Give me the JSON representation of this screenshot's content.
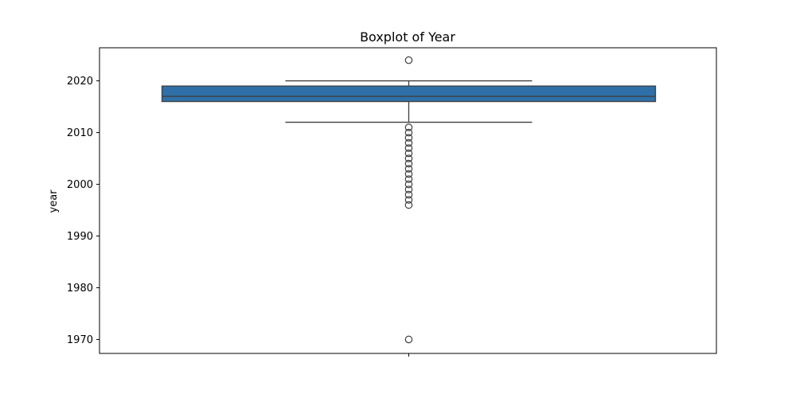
{
  "chart_data": {
    "type": "boxplot",
    "title": "Boxplot of Year",
    "xlabel": "",
    "ylabel": "year",
    "ylim": [
      1967.3,
      2026.4
    ],
    "yticks": [
      1970,
      1980,
      1990,
      2000,
      2010,
      2020
    ],
    "grid": false,
    "legend": "none",
    "box": {
      "whisker_low": 2012,
      "q1": 2016,
      "median": 2017,
      "q3": 2019,
      "whisker_high": 2020
    },
    "outliers": [
      1970,
      1996,
      1997,
      1998,
      1999,
      2000,
      2001,
      2002,
      2003,
      2004,
      2005,
      2006,
      2007,
      2008,
      2009,
      2010,
      2011,
      2024
    ],
    "colors": {
      "box_fill": "#2f70a8",
      "line": "#3f3f3f",
      "frame": "#000000"
    }
  }
}
